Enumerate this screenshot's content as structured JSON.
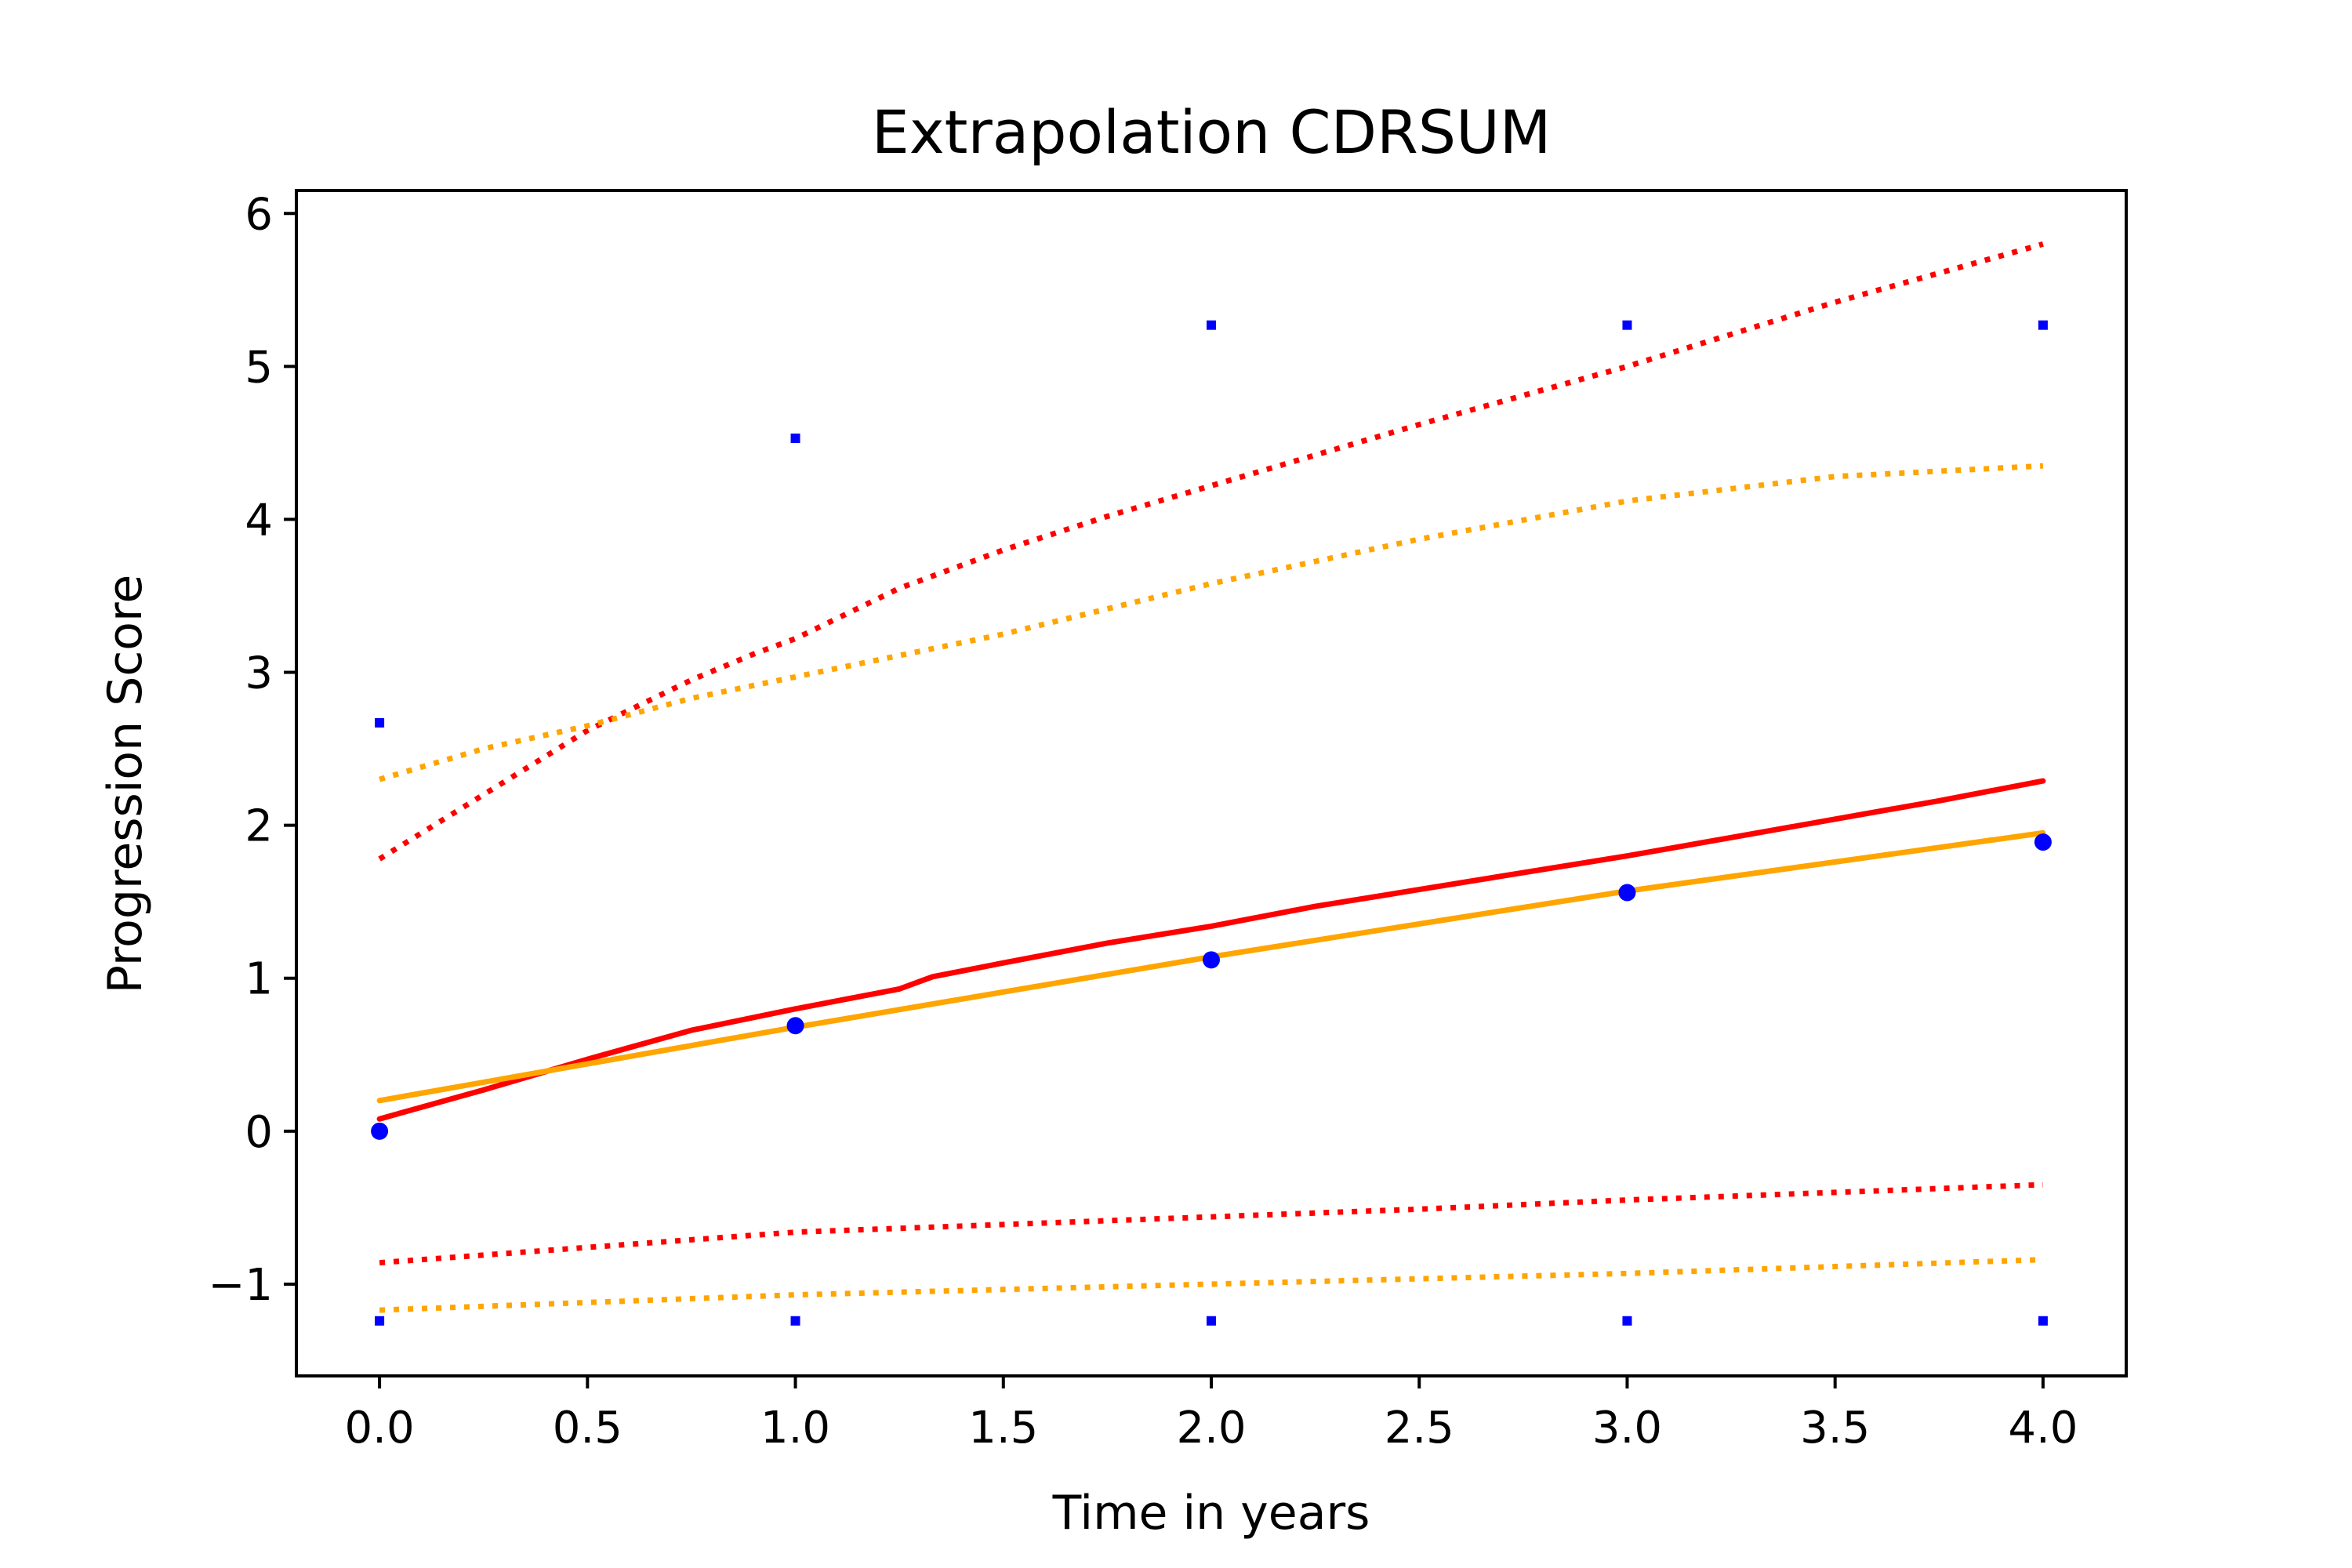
{
  "chart_data": {
    "type": "line",
    "title": "Extrapolation CDRSUM",
    "xlabel": "Time in years",
    "ylabel": "Progression Score",
    "xlim": [
      -0.2,
      4.2
    ],
    "ylim": [
      -1.6,
      6.15
    ],
    "xticks": [
      0.0,
      0.5,
      1.0,
      1.5,
      2.0,
      2.5,
      3.0,
      3.5,
      4.0
    ],
    "xtick_labels": [
      "0.0",
      "0.5",
      "1.0",
      "1.5",
      "2.0",
      "2.5",
      "3.0",
      "3.5",
      "4.0"
    ],
    "yticks": [
      -1,
      0,
      1,
      2,
      3,
      4,
      5,
      6
    ],
    "ytick_labels": [
      "−1",
      "0",
      "1",
      "2",
      "3",
      "4",
      "5",
      "6"
    ],
    "grid": false,
    "series": [
      {
        "color": "#0000ff",
        "style": "scatter-large",
        "x": [
          0,
          1,
          2,
          3,
          4
        ],
        "y": [
          0.0,
          0.69,
          1.12,
          1.56,
          1.89
        ]
      },
      {
        "color": "#0000ff",
        "style": "scatter-small",
        "x": [
          0,
          1,
          2,
          3,
          4
        ],
        "y": [
          2.67,
          4.53,
          5.27,
          5.27,
          5.27
        ]
      },
      {
        "color": "#0000ff",
        "style": "scatter-small",
        "x": [
          0,
          1,
          2,
          3,
          4
        ],
        "y": [
          -1.24,
          -1.24,
          -1.24,
          -1.24,
          -1.24
        ]
      },
      {
        "color": "#ff0000",
        "style": "solid",
        "x": [
          0,
          0.25,
          0.5,
          0.75,
          1.0,
          1.25,
          1.33,
          1.5,
          1.75,
          2.0,
          2.25,
          2.5,
          2.75,
          3.0,
          3.25,
          3.5,
          3.75,
          4.0
        ],
        "y": [
          0.08,
          0.27,
          0.47,
          0.66,
          0.8,
          0.93,
          1.01,
          1.1,
          1.23,
          1.34,
          1.47,
          1.58,
          1.69,
          1.8,
          1.92,
          2.04,
          2.16,
          2.29
        ]
      },
      {
        "color": "#ffa500",
        "style": "solid",
        "x": [
          0,
          1,
          2,
          3,
          4
        ],
        "y": [
          0.2,
          0.68,
          1.14,
          1.57,
          1.95
        ]
      },
      {
        "color": "#ff0000",
        "style": "dotted",
        "x": [
          0,
          0.25,
          0.5,
          0.75,
          0.9,
          1.0,
          1.25,
          1.5,
          1.75,
          2.0,
          2.5,
          3.0,
          3.5,
          4.0
        ],
        "y": [
          1.78,
          2.2,
          2.62,
          2.95,
          3.12,
          3.22,
          3.55,
          3.8,
          4.02,
          4.22,
          4.62,
          5.0,
          5.42,
          5.8
        ]
      },
      {
        "color": "#ffa500",
        "style": "dotted",
        "x": [
          0,
          0.25,
          0.5,
          0.75,
          1.0,
          1.5,
          2.0,
          2.5,
          3.0,
          3.5,
          4.0
        ],
        "y": [
          2.3,
          2.5,
          2.65,
          2.83,
          2.97,
          3.25,
          3.58,
          3.87,
          4.12,
          4.28,
          4.35
        ]
      },
      {
        "color": "#ff0000",
        "style": "dotted",
        "x": [
          0,
          0.5,
          1.0,
          1.5,
          2.0,
          2.5,
          3.0,
          3.5,
          4.0
        ],
        "y": [
          -0.86,
          -0.76,
          -0.66,
          -0.61,
          -0.56,
          -0.51,
          -0.45,
          -0.4,
          -0.35
        ]
      },
      {
        "color": "#ffa500",
        "style": "dotted",
        "x": [
          0,
          1,
          2,
          3,
          4
        ],
        "y": [
          -1.17,
          -1.07,
          -1.0,
          -0.93,
          -0.84
        ]
      }
    ]
  }
}
